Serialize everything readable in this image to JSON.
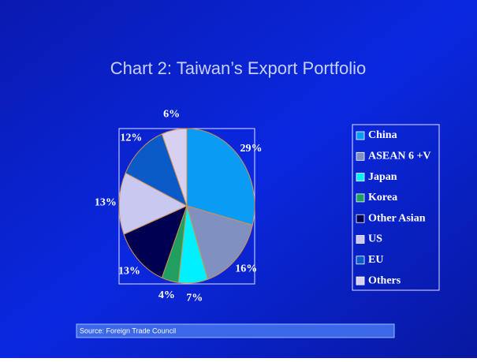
{
  "chart_data": {
    "type": "pie",
    "title": "Chart 2: Taiwan’s Export Portfolio",
    "categories": [
      "China",
      "ASEAN 6 +V",
      "Japan",
      "Korea",
      "Other Asian",
      "US",
      "EU",
      "Others"
    ],
    "values": [
      29,
      16,
      7,
      4,
      13,
      13,
      12,
      6
    ],
    "value_labels": [
      "29%",
      "16%",
      "7%",
      "4%",
      "13%",
      "13%",
      "12%",
      "6%"
    ],
    "colors": [
      "#0a9cf5",
      "#8090c0",
      "#00f0ff",
      "#20a060",
      "#000050",
      "#c8c8f0",
      "#0a5ac8",
      "#d8d0f0"
    ],
    "source": "Source: Foreign Trade Council"
  }
}
